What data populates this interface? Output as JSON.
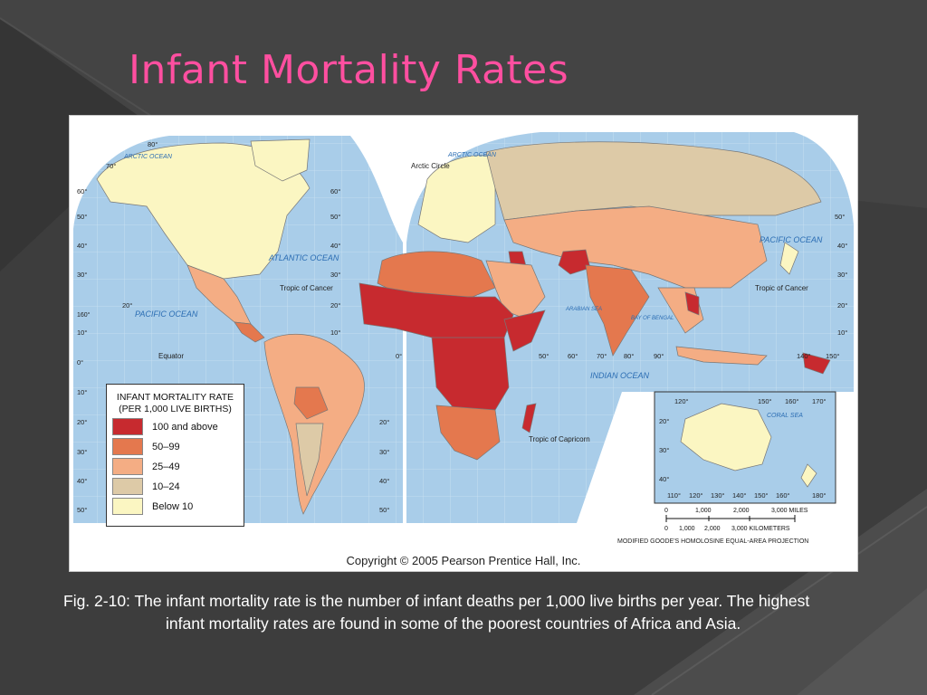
{
  "slide": {
    "title": "Infant Mortality Rates",
    "caption": "Fig. 2-10: The infant mortality rate is the number of infant deaths per 1,000 live births per year. The highest infant mortality rates are found in some of the poorest countries of Africa and Asia."
  },
  "figure": {
    "copyright": "Copyright © 2005 Pearson Prentice Hall, Inc.",
    "projection": "MODIFIED GOODE'S HOMOLOSINE EQUAL-AREA PROJECTION",
    "legend": {
      "title_line1": "INFANT MORTALITY RATE",
      "title_line2": "(PER 1,000 LIVE BIRTHS)",
      "classes": [
        {
          "label": "100 and above",
          "color": "#c72a2f"
        },
        {
          "label": "50–99",
          "color": "#e4784e"
        },
        {
          "label": "25–49",
          "color": "#f4ad84"
        },
        {
          "label": "10–24",
          "color": "#ddcaa7"
        },
        {
          "label": "Below 10",
          "color": "#fbf6c2"
        }
      ]
    },
    "scale": {
      "miles_ticks": [
        "0",
        "1,000",
        "2,000",
        "3,000 MILES"
      ],
      "km_ticks": [
        "0",
        "1,000",
        "2,000",
        "3,000 KILOMETERS"
      ]
    },
    "labels": {
      "arctic_ocean_left": "ARCTIC OCEAN",
      "arctic_ocean_right": "ARCTIC OCEAN",
      "arctic_circle": "Arctic Circle",
      "atlantic_ocean": "ATLANTIC OCEAN",
      "pacific_ocean_left": "PACIFIC OCEAN",
      "pacific_ocean_right": "PACIFIC OCEAN",
      "indian_ocean": "INDIAN OCEAN",
      "arabian_sea": "ARABIAN SEA",
      "bay_of_bengal": "BAY OF BENGAL",
      "coral_sea": "CORAL SEA",
      "tropic_cancer_left": "Tropic of Cancer",
      "tropic_cancer_right": "Tropic of Cancer",
      "tropic_capricorn": "Tropic of Capricorn",
      "equator": "Equator"
    },
    "graticule": {
      "lat_left": [
        "80°",
        "70°",
        "60°",
        "50°",
        "40°",
        "30°",
        "20°",
        "10°",
        "0°",
        "10°",
        "20°",
        "30°",
        "40°",
        "50°"
      ],
      "lat_mid": [
        "60°",
        "50°",
        "40°",
        "30°",
        "20°",
        "10°",
        "20°",
        "30°",
        "40°",
        "50°"
      ],
      "lat_right": [
        "50°",
        "40°",
        "30°",
        "20°",
        "10°"
      ],
      "lon_bottom": [
        "0°",
        "50°",
        "60°",
        "70°",
        "80°",
        "90°",
        "140°",
        "150°"
      ],
      "lon_inset": [
        "110°",
        "120°",
        "130°",
        "140°",
        "150°",
        "160°",
        "180°"
      ],
      "lon_inset_top": [
        "120°",
        "150°",
        "160°",
        "170°"
      ],
      "inset_lat": [
        "20°",
        "30°",
        "40°"
      ],
      "pacific_160": "160°"
    }
  }
}
